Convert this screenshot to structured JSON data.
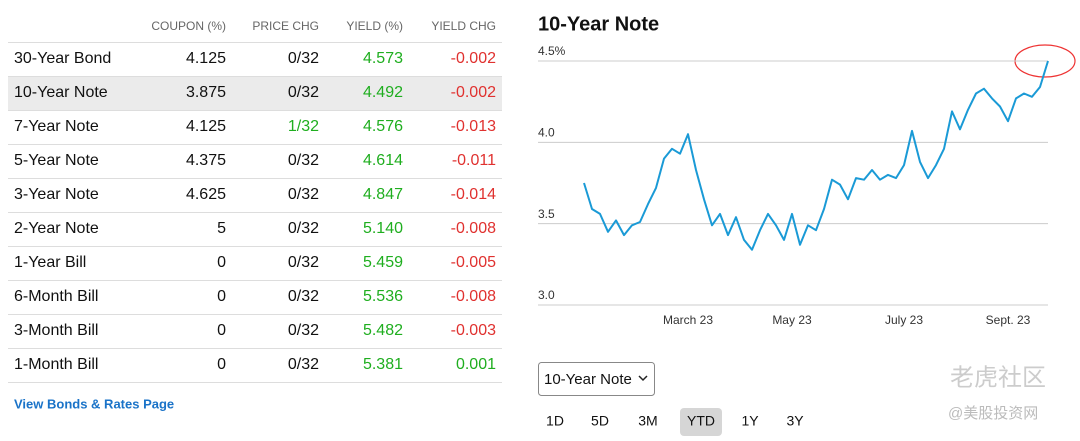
{
  "table": {
    "headers": [
      "COUPON (%)",
      "PRICE CHG",
      "YIELD (%)",
      "YIELD CHG"
    ],
    "selected_row": 1,
    "rows": [
      [
        "30-Year Bond",
        "4.125",
        "0/32",
        "4.573",
        "-0.002"
      ],
      [
        "10-Year Note",
        "3.875",
        "0/32",
        "4.492",
        "-0.002"
      ],
      [
        "7-Year Note",
        "4.125",
        "1/32",
        "4.576",
        "-0.013"
      ],
      [
        "5-Year Note",
        "4.375",
        "0/32",
        "4.614",
        "-0.011"
      ],
      [
        "3-Year Note",
        "4.625",
        "0/32",
        "4.847",
        "-0.014"
      ],
      [
        "2-Year Note",
        "5",
        "0/32",
        "5.140",
        "-0.008"
      ],
      [
        "1-Year Bill",
        "0",
        "0/32",
        "5.459",
        "-0.005"
      ],
      [
        "6-Month Bill",
        "0",
        "0/32",
        "5.536",
        "-0.008"
      ],
      [
        "3-Month Bill",
        "0",
        "0/32",
        "5.482",
        "-0.003"
      ],
      [
        "1-Month Bill",
        "0",
        "0/32",
        "5.381",
        "0.001"
      ]
    ],
    "link": "View Bonds & Rates Page"
  },
  "chart_data": {
    "type": "line",
    "title": "10-Year Note",
    "color": "#1a9ad6",
    "categories": [
      null,
      null,
      null,
      null,
      null,
      null,
      null,
      null,
      null,
      null,
      null,
      null,
      null,
      "March 23",
      null,
      null,
      null,
      null,
      null,
      null,
      null,
      null,
      null,
      null,
      null,
      null,
      "May 23",
      null,
      null,
      null,
      null,
      null,
      null,
      null,
      null,
      null,
      null,
      null,
      null,
      null,
      "July 23",
      null,
      null,
      null,
      null,
      null,
      null,
      null,
      null,
      null,
      null,
      null,
      null,
      "Sept. 23",
      null,
      null,
      null,
      null,
      null
    ],
    "values": [
      3.75,
      3.59,
      3.56,
      3.45,
      3.52,
      3.43,
      3.49,
      3.51,
      3.62,
      3.72,
      3.9,
      3.96,
      3.93,
      4.05,
      3.83,
      3.65,
      3.49,
      3.56,
      3.43,
      3.54,
      3.4,
      3.34,
      3.46,
      3.56,
      3.49,
      3.4,
      3.56,
      3.37,
      3.49,
      3.46,
      3.59,
      3.77,
      3.74,
      3.65,
      3.78,
      3.77,
      3.83,
      3.77,
      3.8,
      3.78,
      3.86,
      4.07,
      3.88,
      3.78,
      3.86,
      3.96,
      4.19,
      4.08,
      4.2,
      4.3,
      4.33,
      4.27,
      4.22,
      4.13,
      4.27,
      4.3,
      4.28,
      4.34,
      4.5
    ],
    "ylim": [
      3,
      4.5
    ],
    "yticks": [
      {
        "value": 3,
        "label": "3.0"
      },
      3.5,
      {
        "value": 4,
        "label": "4.0"
      },
      {
        "value": 4.5,
        "label": "4.5%"
      }
    ],
    "grid": true
  },
  "controls": {
    "dropdown": "10-Year Note",
    "ranges": [
      "1D",
      "5D",
      "3M",
      "YTD",
      "1Y",
      "3Y"
    ],
    "active_range": 3
  },
  "watermark": [
    "老虎社区",
    "@美股投资网"
  ]
}
